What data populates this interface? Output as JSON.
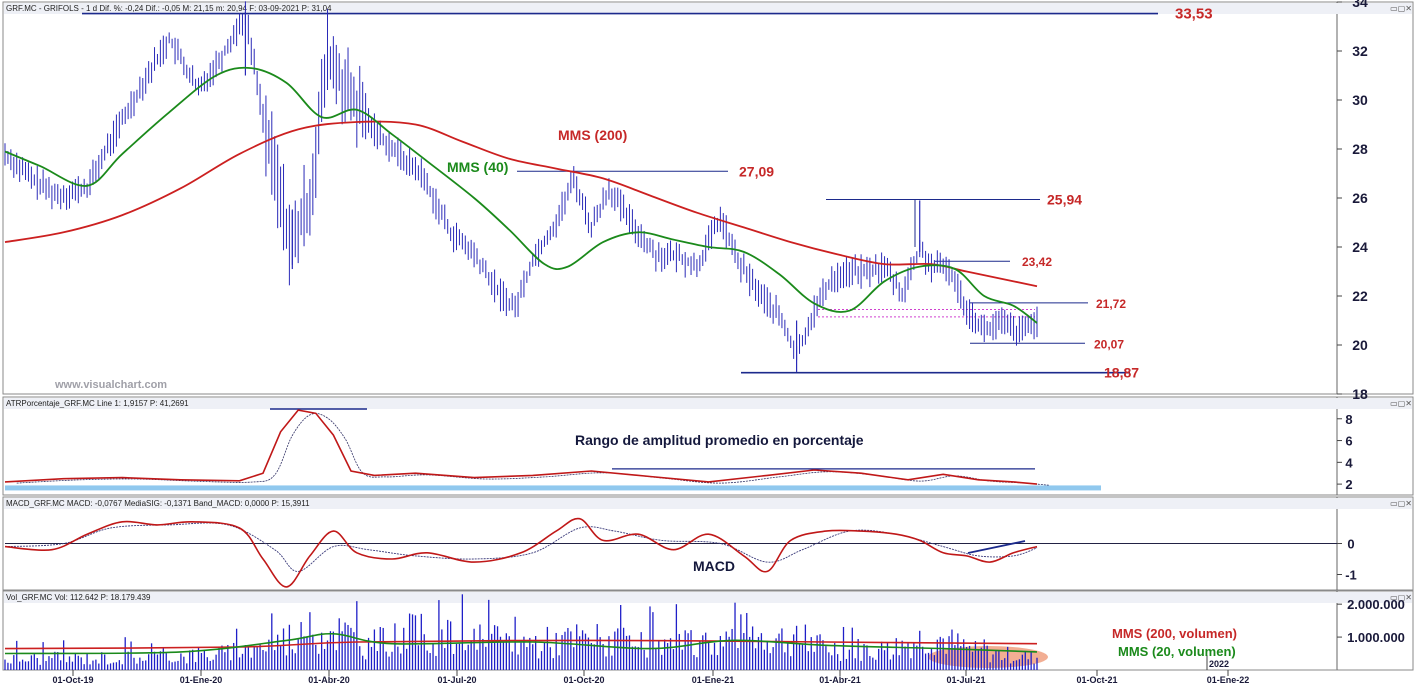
{
  "colors": {
    "price": "#2a2ab8",
    "sma40": "#1b8a1b",
    "sma200": "#cc2020",
    "atr": "#c01818",
    "macd": "#c01818",
    "signal": "#3a3a7a",
    "volume": "#1f1fc8",
    "level": "#1c2a8c",
    "label_red": "#c62828",
    "band": "#90c8ee",
    "oval": "#f0a080"
  },
  "panels": [
    {
      "id": "price",
      "header": "GRF.MC - GRIFOLS - 1 d Dif. %: -0,24 Dif.: -0,05 M: 21,15 m: 20,94 F: 03-09-2021 P: 31,04",
      "yticks": [
        "34",
        "32",
        "30",
        "28",
        "26",
        "24",
        "22",
        "20",
        "18"
      ],
      "window_buttons": "▭▢✕"
    },
    {
      "id": "atr",
      "header": "ATRPorcentaje_GRF.MC Line 1: 1,9157 P: 41,2691",
      "yticks": [
        "8",
        "6",
        "4",
        "2"
      ],
      "window_buttons": "▭▢✕"
    },
    {
      "id": "macd",
      "header": "MACD_GRF.MC MACD: -0,0767 MediaSIG: -0,1371 Band_MACD: 0,0000 P: 15,3911",
      "yticks": [
        "0",
        "-1"
      ],
      "window_buttons": "▭▢✕"
    },
    {
      "id": "vol",
      "header": "Vol_GRF.MC Vol: 112.642 P: 18.179.439",
      "yticks": [
        "2.000.000",
        "1.000.000"
      ],
      "window_buttons": "▭▢✕"
    }
  ],
  "xticks": [
    "01-Oct-19",
    "01-Ene-20",
    "01-Abr-20",
    "01-Jul-20",
    "01-Oct-20",
    "01-Ene-21",
    "01-Abr-21",
    "01-Jul-21",
    "01-Oct-21",
    "01-Ene-22"
  ],
  "year_marker": "2022",
  "watermark": "www.visualchart.com",
  "annotations": {
    "mms200": "MMS (200)",
    "mms40": "MMS (40)",
    "atr_title": "Rango de amplitud promedio en porcentaje",
    "macd_title": "MACD",
    "vol_mms200": "MMS (200, volumen)",
    "vol_mms20": "MMS (20, volumen)"
  },
  "levels": [
    {
      "label": "33,53",
      "value": 33.53
    },
    {
      "label": "27,09",
      "value": 27.09
    },
    {
      "label": "25,94",
      "value": 25.94
    },
    {
      "label": "23,42",
      "value": 23.42
    },
    {
      "label": "21,72",
      "value": 21.72
    },
    {
      "label": "20,07",
      "value": 20.07
    },
    {
      "label": "18,87",
      "value": 18.87
    }
  ],
  "chart_data": [
    {
      "type": "line",
      "title": "GRF.MC - GRIFOLS - 1 d",
      "x": [
        "01-Oct-19",
        "01-Ene-20",
        "01-Abr-20",
        "01-Jul-20",
        "01-Oct-20",
        "01-Ene-21",
        "01-Abr-21",
        "01-Jul-21",
        "01-Oct-21",
        "01-Ene-22"
      ],
      "ylim": [
        18,
        34
      ],
      "series": [
        {
          "name": "price",
          "points": [
            [
              0,
              27.8
            ],
            [
              5,
              26.7
            ],
            [
              9,
              26.1
            ],
            [
              14,
              26.4
            ],
            [
              18,
              28.3
            ],
            [
              24,
              30.9
            ],
            [
              28,
              32.5
            ],
            [
              33,
              30.4
            ],
            [
              37,
              31.8
            ],
            [
              41,
              33.5
            ],
            [
              45,
              28.0
            ],
            [
              49,
              24.0
            ],
            [
              52,
              26.0
            ],
            [
              55,
              31.8
            ],
            [
              59,
              30.0
            ],
            [
              63,
              28.8
            ],
            [
              67,
              27.8
            ],
            [
              71,
              27.0
            ],
            [
              76,
              24.6
            ],
            [
              80,
              23.7
            ],
            [
              84,
              22.2
            ],
            [
              87,
              21.5
            ],
            [
              90,
              23.5
            ],
            [
              94,
              25.0
            ],
            [
              97,
              26.8
            ],
            [
              100,
              24.8
            ],
            [
              103,
              26.4
            ],
            [
              107,
              24.9
            ],
            [
              111,
              23.7
            ],
            [
              115,
              23.6
            ],
            [
              118,
              23.2
            ],
            [
              122,
              25.2
            ],
            [
              125,
              23.4
            ],
            [
              129,
              22.0
            ],
            [
              132,
              21.2
            ],
            [
              135,
              19.6
            ],
            [
              138,
              21.4
            ],
            [
              141,
              22.7
            ],
            [
              144,
              23.0
            ],
            [
              147,
              23.0
            ],
            [
              150,
              23.2
            ],
            [
              153,
              22.1
            ],
            [
              156,
              23.9
            ],
            [
              158,
              23.2
            ],
            [
              161,
              23.1
            ],
            [
              164,
              21.5
            ],
            [
              167,
              20.6
            ],
            [
              170,
              20.9
            ],
            [
              173,
              20.5
            ],
            [
              176,
              21.0
            ]
          ]
        },
        {
          "name": "MMS (40)",
          "points": [
            [
              0,
              27.9
            ],
            [
              6,
              27.3
            ],
            [
              14,
              26.5
            ],
            [
              20,
              27.8
            ],
            [
              28,
              29.5
            ],
            [
              36,
              31.0
            ],
            [
              42,
              31.3
            ],
            [
              48,
              30.7
            ],
            [
              54,
              29.3
            ],
            [
              60,
              29.6
            ],
            [
              66,
              28.6
            ],
            [
              72,
              27.5
            ],
            [
              80,
              26.0
            ],
            [
              86,
              24.7
            ],
            [
              92,
              23.3
            ],
            [
              96,
              23.2
            ],
            [
              102,
              24.2
            ],
            [
              108,
              24.6
            ],
            [
              114,
              24.3
            ],
            [
              120,
              24.0
            ],
            [
              126,
              23.8
            ],
            [
              132,
              22.9
            ],
            [
              138,
              21.7
            ],
            [
              144,
              21.4
            ],
            [
              150,
              22.6
            ],
            [
              156,
              23.2
            ],
            [
              162,
              23.1
            ],
            [
              167,
              22.0
            ],
            [
              172,
              21.6
            ],
            [
              176,
              20.9
            ]
          ]
        },
        {
          "name": "MMS (200)",
          "points": [
            [
              0,
              24.2
            ],
            [
              10,
              24.6
            ],
            [
              20,
              25.3
            ],
            [
              30,
              26.4
            ],
            [
              40,
              27.8
            ],
            [
              50,
              28.8
            ],
            [
              60,
              29.1
            ],
            [
              70,
              29.0
            ],
            [
              78,
              28.3
            ],
            [
              86,
              27.6
            ],
            [
              94,
              27.2
            ],
            [
              102,
              26.8
            ],
            [
              110,
              26.1
            ],
            [
              118,
              25.4
            ],
            [
              126,
              24.8
            ],
            [
              134,
              24.2
            ],
            [
              142,
              23.7
            ],
            [
              150,
              23.3
            ],
            [
              158,
              23.3
            ],
            [
              164,
              23.0
            ],
            [
              170,
              22.7
            ],
            [
              176,
              22.4
            ]
          ]
        }
      ]
    },
    {
      "type": "line",
      "title": "ATRPorcentaje_GRF.MC",
      "ylim": [
        1,
        10
      ],
      "series": [
        {
          "name": "Line 1",
          "points": [
            [
              0,
              2.2
            ],
            [
              10,
              2.5
            ],
            [
              20,
              2.6
            ],
            [
              30,
              2.4
            ],
            [
              40,
              2.3
            ],
            [
              44,
              3.0
            ],
            [
              47,
              6.8
            ],
            [
              50,
              8.8
            ],
            [
              53,
              8.5
            ],
            [
              56,
              6.5
            ],
            [
              59,
              3.2
            ],
            [
              63,
              2.8
            ],
            [
              70,
              3.0
            ],
            [
              80,
              2.6
            ],
            [
              90,
              2.8
            ],
            [
              100,
              3.2
            ],
            [
              110,
              2.7
            ],
            [
              120,
              2.2
            ],
            [
              130,
              2.8
            ],
            [
              138,
              3.3
            ],
            [
              146,
              3.0
            ],
            [
              154,
              2.4
            ],
            [
              160,
              2.9
            ],
            [
              166,
              2.4
            ],
            [
              172,
              2.2
            ],
            [
              176,
              2.0
            ]
          ]
        }
      ]
    },
    {
      "type": "line",
      "title": "MACD_GRF.MC",
      "ylim": [
        -1.5,
        1.5
      ],
      "series": [
        {
          "name": "MACD",
          "points": [
            [
              0,
              -0.1
            ],
            [
              8,
              -0.2
            ],
            [
              14,
              0.3
            ],
            [
              20,
              0.7
            ],
            [
              26,
              0.6
            ],
            [
              32,
              0.7
            ],
            [
              40,
              0.5
            ],
            [
              44,
              -0.5
            ],
            [
              48,
              -1.4
            ],
            [
              52,
              -0.4
            ],
            [
              56,
              0.4
            ],
            [
              60,
              -0.3
            ],
            [
              66,
              -0.5
            ],
            [
              72,
              -0.3
            ],
            [
              80,
              -0.6
            ],
            [
              88,
              -0.3
            ],
            [
              94,
              0.4
            ],
            [
              98,
              0.8
            ],
            [
              102,
              0.1
            ],
            [
              108,
              0.3
            ],
            [
              114,
              -0.2
            ],
            [
              120,
              0.3
            ],
            [
              126,
              -0.4
            ],
            [
              130,
              -0.9
            ],
            [
              134,
              0.1
            ],
            [
              140,
              0.4
            ],
            [
              146,
              0.4
            ],
            [
              152,
              0.3
            ],
            [
              156,
              0.1
            ],
            [
              160,
              -0.3
            ],
            [
              164,
              -0.4
            ],
            [
              168,
              -0.6
            ],
            [
              172,
              -0.3
            ],
            [
              176,
              -0.1
            ]
          ]
        },
        {
          "name": "MediaSIG",
          "points": [
            [
              0,
              -0.1
            ],
            [
              10,
              0.0
            ],
            [
              18,
              0.5
            ],
            [
              28,
              0.6
            ],
            [
              38,
              0.6
            ],
            [
              46,
              -0.2
            ],
            [
              50,
              -0.9
            ],
            [
              56,
              -0.1
            ],
            [
              62,
              -0.2
            ],
            [
              70,
              -0.4
            ],
            [
              80,
              -0.5
            ],
            [
              90,
              -0.3
            ],
            [
              98,
              0.5
            ],
            [
              104,
              0.4
            ],
            [
              112,
              0.1
            ],
            [
              122,
              0.0
            ],
            [
              130,
              -0.6
            ],
            [
              136,
              -0.2
            ],
            [
              144,
              0.4
            ],
            [
              152,
              0.3
            ],
            [
              160,
              -0.1
            ],
            [
              166,
              -0.4
            ],
            [
              172,
              -0.4
            ],
            [
              176,
              -0.14
            ]
          ]
        }
      ]
    },
    {
      "type": "bar",
      "title": "Vol_GRF.MC",
      "ylim": [
        0,
        2400000
      ],
      "series": [
        {
          "name": "Vol",
          "envelope": [
            [
              0,
              450000
            ],
            [
              20,
              500000
            ],
            [
              40,
              700000
            ],
            [
              48,
              1300000
            ],
            [
              56,
              1700000
            ],
            [
              62,
              1000000
            ],
            [
              70,
              1500000
            ],
            [
              80,
              1200000
            ],
            [
              90,
              1100000
            ],
            [
              100,
              1300000
            ],
            [
              110,
              900000
            ],
            [
              120,
              1100000
            ],
            [
              126,
              1500000
            ],
            [
              132,
              1300000
            ],
            [
              140,
              900000
            ],
            [
              150,
              800000
            ],
            [
              158,
              1400000
            ],
            [
              166,
              700000
            ],
            [
              176,
              500000
            ]
          ]
        },
        {
          "name": "MMS (200, volumen)",
          "points": [
            [
              0,
              650000
            ],
            [
              40,
              700000
            ],
            [
              60,
              850000
            ],
            [
              100,
              900000
            ],
            [
              140,
              850000
            ],
            [
              176,
              800000
            ]
          ]
        },
        {
          "name": "MMS (20, volumen)",
          "points": [
            [
              0,
              500000
            ],
            [
              30,
              550000
            ],
            [
              48,
              900000
            ],
            [
              56,
              1100000
            ],
            [
              66,
              800000
            ],
            [
              90,
              850000
            ],
            [
              110,
              650000
            ],
            [
              124,
              900000
            ],
            [
              140,
              750000
            ],
            [
              160,
              650000
            ],
            [
              176,
              550000
            ]
          ]
        }
      ]
    }
  ]
}
